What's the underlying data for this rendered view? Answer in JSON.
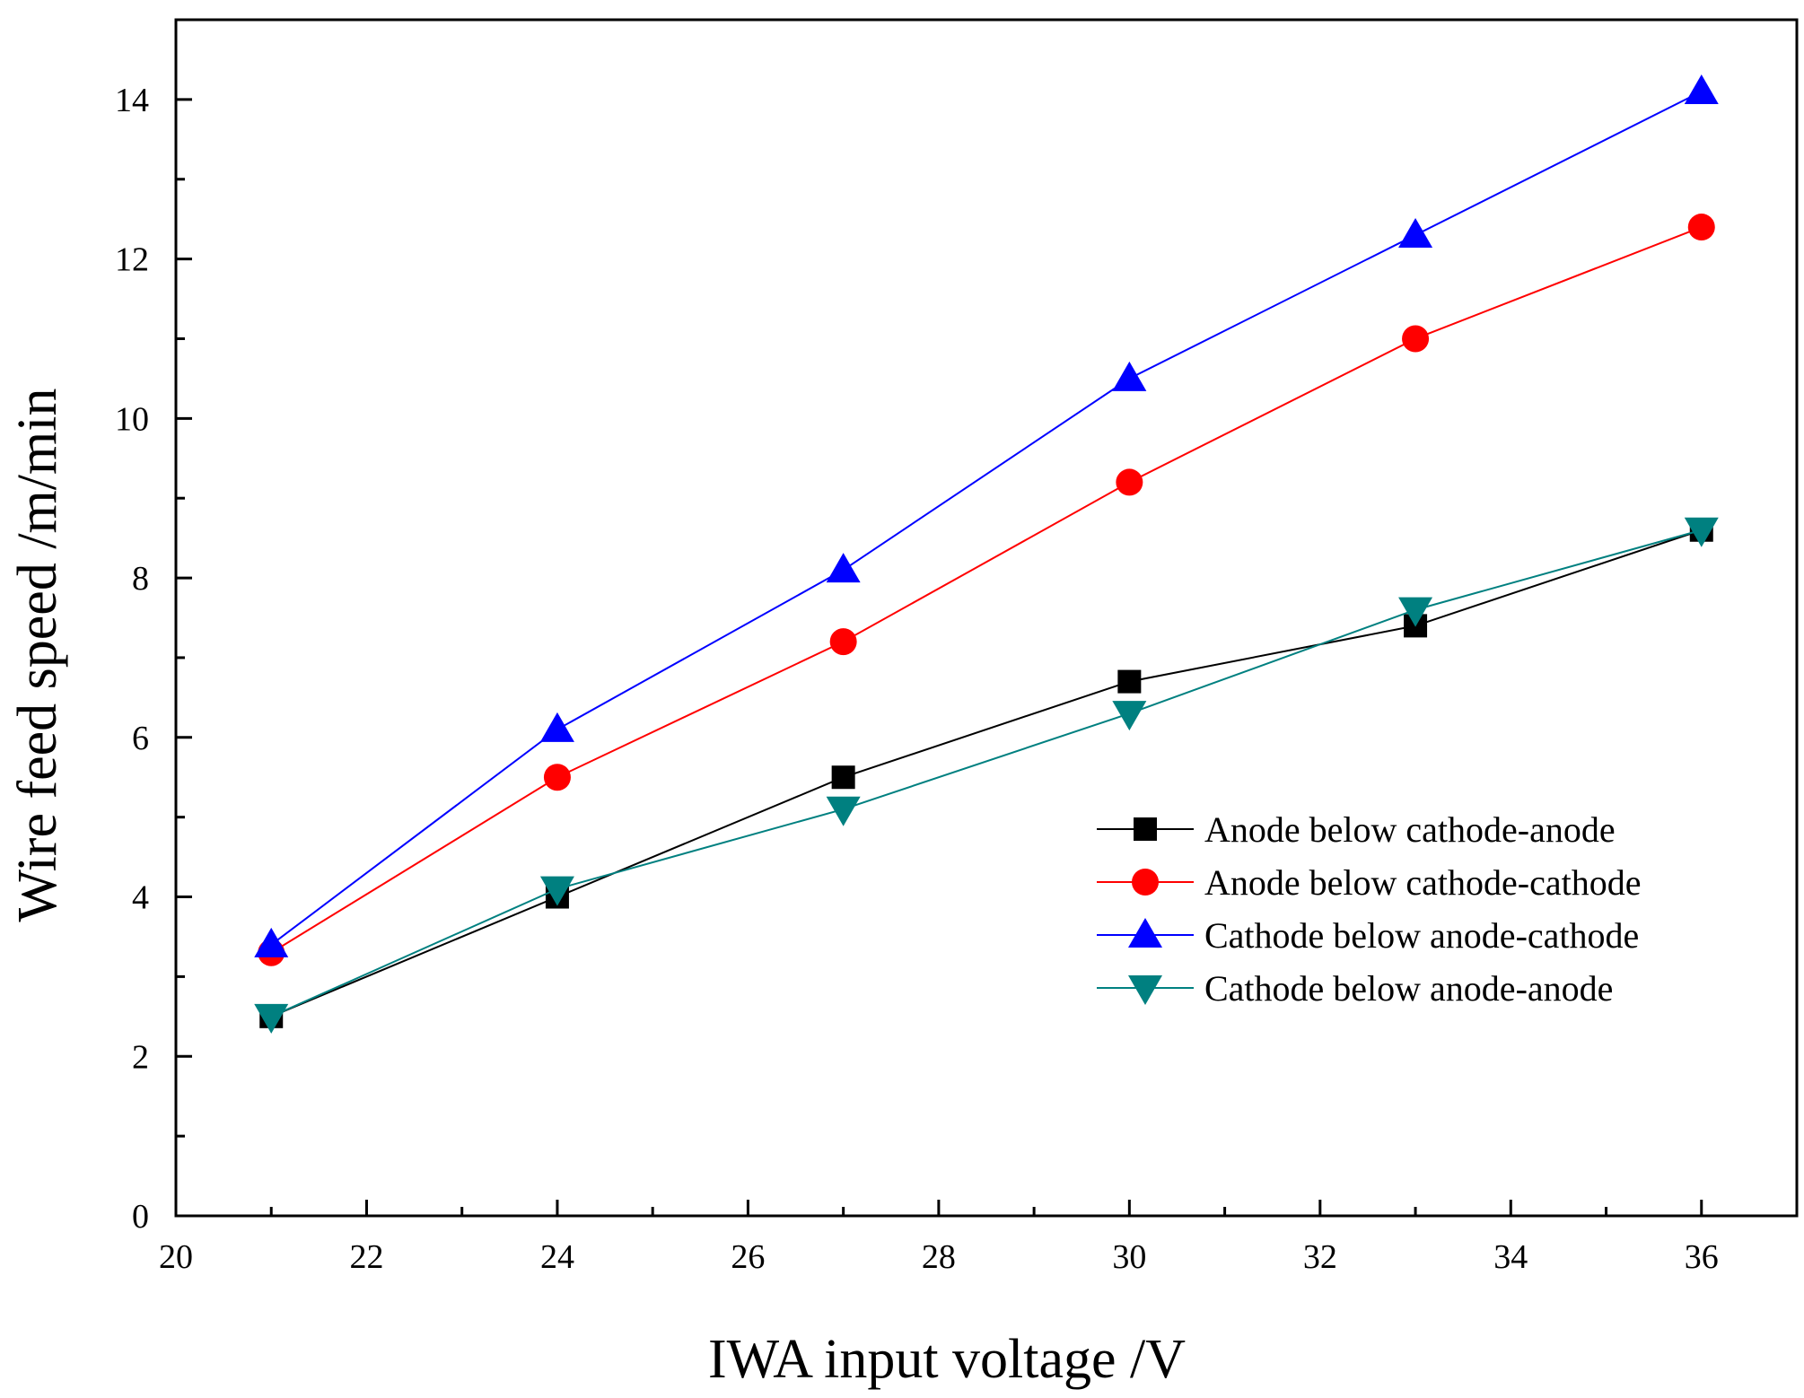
{
  "chart_data": {
    "type": "line",
    "xlabel": "IWA input voltage /V",
    "ylabel": "Wire feed speed /m/min",
    "xlim": [
      20,
      37
    ],
    "ylim": [
      0,
      15
    ],
    "x_ticks": [
      20,
      22,
      24,
      26,
      28,
      30,
      32,
      34,
      36
    ],
    "y_ticks": [
      0,
      2,
      4,
      6,
      8,
      10,
      12,
      14
    ],
    "grid": false,
    "legend_position": "right",
    "x": [
      21,
      24,
      27,
      30,
      33,
      36
    ],
    "series": [
      {
        "name": "Anode below cathode-anode",
        "values": [
          2.5,
          4.0,
          5.5,
          6.7,
          7.4,
          8.6
        ],
        "color": "#000000",
        "marker": "square"
      },
      {
        "name": "Anode below cathode-cathode",
        "values": [
          3.3,
          5.5,
          7.2,
          9.2,
          11.0,
          12.4
        ],
        "color": "#ff0000",
        "marker": "circle"
      },
      {
        "name": "Cathode below anode-cathode",
        "values": [
          3.4,
          6.1,
          8.1,
          10.5,
          12.3,
          14.1
        ],
        "color": "#0000ff",
        "marker": "triangle-up"
      },
      {
        "name": "Cathode below anode-anode",
        "values": [
          2.5,
          4.1,
          5.1,
          6.3,
          7.6,
          8.6
        ],
        "color": "#008080",
        "marker": "triangle-down"
      }
    ]
  }
}
